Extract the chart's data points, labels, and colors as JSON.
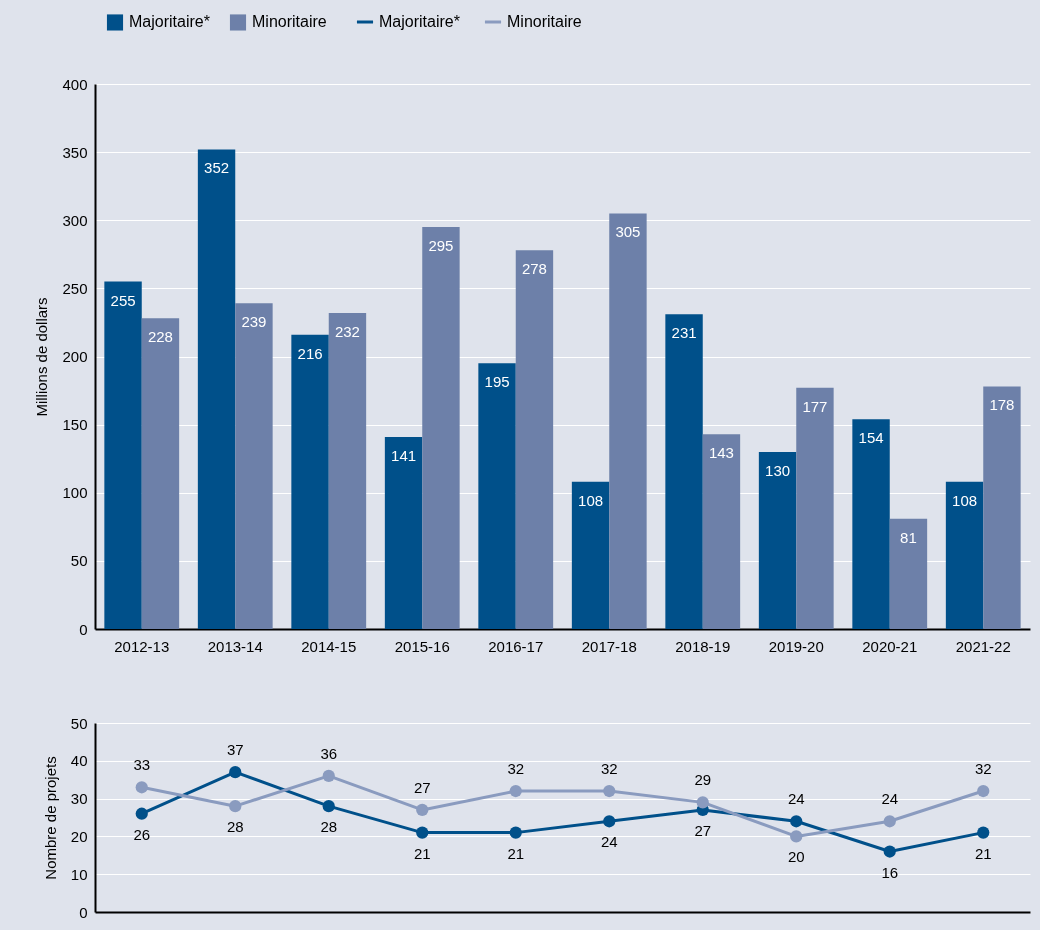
{
  "chart_data": [
    {
      "type": "bar",
      "ylabel": "Millions de dollars",
      "categories": [
        "2012-13",
        "2013-14",
        "2014-15",
        "2015-16",
        "2016-17",
        "2017-18",
        "2018-19",
        "2019-20",
        "2020-21",
        "2021-22"
      ],
      "series": [
        {
          "name": "Majoritaire*",
          "color": "#00508a",
          "values": [
            255,
            352,
            216,
            141,
            195,
            108,
            231,
            130,
            154,
            108
          ]
        },
        {
          "name": "Minoritaire",
          "color": "#6d80a9",
          "values": [
            228,
            239,
            232,
            295,
            278,
            305,
            143,
            177,
            81,
            178
          ]
        }
      ],
      "ylim": [
        0,
        400
      ],
      "yticks": [
        0,
        50,
        100,
        150,
        200,
        250,
        300,
        350,
        400
      ],
      "grid": "y",
      "legend": "top left",
      "data_labels": true
    },
    {
      "type": "line",
      "ylabel": "Nombre de projets",
      "categories": [
        "2012-13",
        "2013-14",
        "2014-15",
        "2015-16",
        "2016-17",
        "2017-18",
        "2018-19",
        "2019-20",
        "2020-21",
        "2021-22"
      ],
      "series": [
        {
          "name": "Majoritaire*",
          "color": "#00508a",
          "values": [
            26,
            37,
            28,
            21,
            21,
            24,
            27,
            24,
            16,
            21
          ]
        },
        {
          "name": "Minoritaire",
          "color": "#8a9bbf",
          "values": [
            33,
            28,
            36,
            27,
            32,
            32,
            29,
            20,
            24,
            32
          ]
        }
      ],
      "ylim": [
        0,
        50
      ],
      "yticks": [
        0,
        10,
        20,
        30,
        40,
        50
      ],
      "grid": "y",
      "legend": "top",
      "marker": "circle",
      "data_labels": true,
      "tick_labels": "y"
    }
  ]
}
